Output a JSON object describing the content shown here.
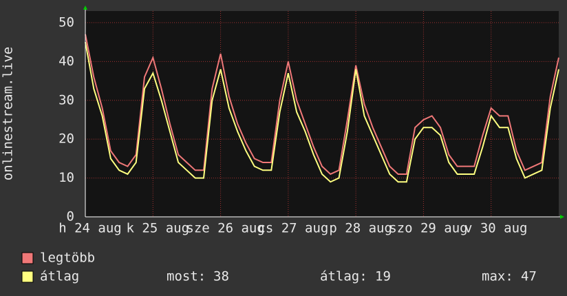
{
  "chart_data": {
    "type": "line",
    "y_label": "onlinestream.live",
    "x": [
      0,
      3,
      6,
      9,
      12,
      15,
      18,
      21,
      24,
      27,
      30,
      33,
      36,
      39,
      42,
      45,
      48,
      51,
      54,
      57,
      60,
      63,
      66,
      69,
      72,
      75,
      78,
      81,
      84,
      87,
      90,
      93,
      96,
      99,
      102,
      105,
      108,
      111,
      114,
      117,
      120,
      123,
      126,
      129,
      132,
      135,
      138,
      141,
      144,
      147,
      150,
      153,
      156,
      159,
      162,
      165,
      168
    ],
    "xlim": [
      0,
      168
    ],
    "xticks": [
      {
        "value": 0,
        "label": "h 24 aug"
      },
      {
        "value": 24,
        "label": "k 25 aug"
      },
      {
        "value": 48,
        "label": "sze 26 aug"
      },
      {
        "value": 72,
        "label": "cs 27 aug"
      },
      {
        "value": 96,
        "label": "p 28 aug"
      },
      {
        "value": 120,
        "label": "szo 29 aug"
      },
      {
        "value": 144,
        "label": "v 30 aug"
      }
    ],
    "ylim": [
      0,
      53
    ],
    "yticks": [
      0,
      10,
      20,
      30,
      40,
      50
    ],
    "grid": true,
    "series": [
      {
        "name": "legtöbb",
        "color": "#f07878",
        "values": [
          47,
          36,
          28,
          17,
          14,
          13,
          16,
          36,
          41,
          33,
          24,
          16,
          14,
          12,
          12,
          33,
          42,
          31,
          24,
          19,
          15,
          14,
          14,
          30,
          40,
          30,
          24,
          18,
          13,
          11,
          12,
          25,
          39,
          29,
          23,
          18,
          13,
          11,
          11,
          23,
          25,
          26,
          23,
          16,
          13,
          13,
          13,
          21,
          28,
          26,
          26,
          17,
          12,
          13,
          14,
          31,
          41
        ]
      },
      {
        "name": "átlag",
        "color": "#ffff80",
        "values": [
          45,
          33,
          26,
          15,
          12,
          11,
          14,
          33,
          37,
          30,
          22,
          14,
          12,
          10,
          10,
          30,
          38,
          28,
          22,
          17,
          13,
          12,
          12,
          27,
          37,
          27,
          22,
          16,
          11,
          9,
          10,
          22,
          38,
          26,
          21,
          16,
          11,
          9,
          9,
          20,
          23,
          23,
          21,
          14,
          11,
          11,
          11,
          18,
          26,
          23,
          23,
          15,
          10,
          11,
          12,
          28,
          38
        ]
      }
    ],
    "legend": "bottom-left",
    "stats": [
      {
        "label": "most:",
        "value": 38
      },
      {
        "label": "átlag:",
        "value": 19
      },
      {
        "label": "max:",
        "value": 47
      }
    ]
  }
}
